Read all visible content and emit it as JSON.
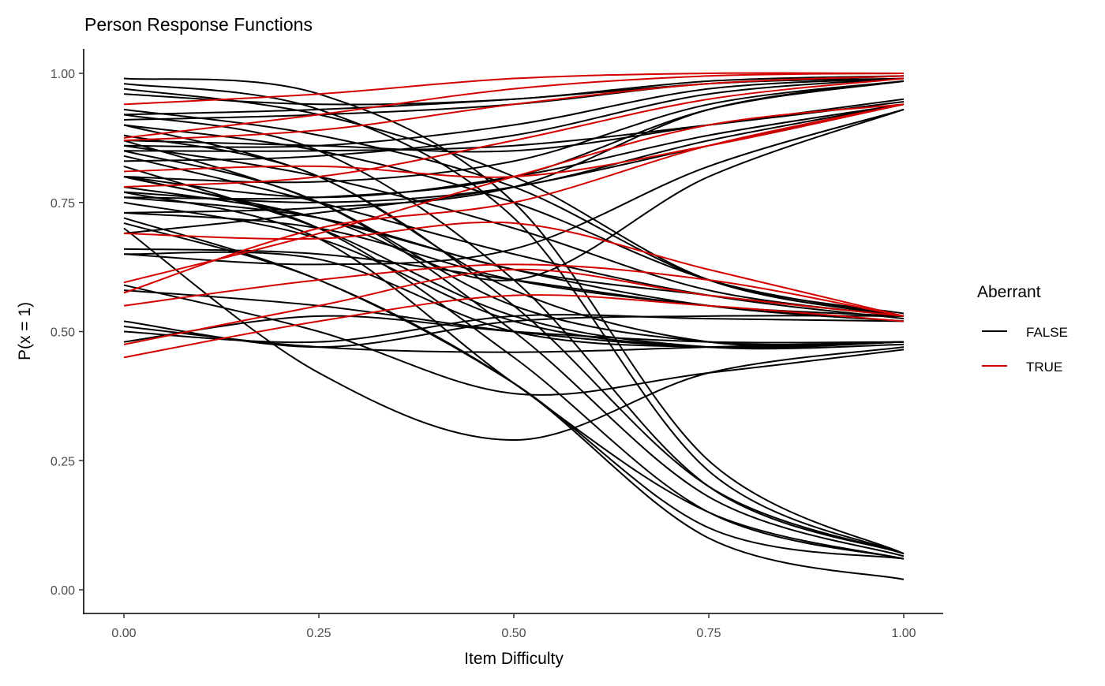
{
  "chart_data": {
    "type": "line",
    "title": "Person Response Functions",
    "xlabel": "Item Difficulty",
    "ylabel": "P(x = 1)",
    "xlim": [
      0,
      1
    ],
    "ylim": [
      0,
      1
    ],
    "x_ticks": [
      "0.00",
      "0.25",
      "0.50",
      "0.75",
      "1.00"
    ],
    "y_ticks": [
      "0.00",
      "0.25",
      "0.50",
      "0.75",
      "1.00"
    ],
    "grid": false,
    "legend": {
      "title": "Aberrant",
      "placement": "right",
      "entries": [
        {
          "label": "FALSE",
          "color": "#000000"
        },
        {
          "label": "TRUE",
          "color": "#D40000"
        }
      ]
    },
    "x": [
      0,
      0.25,
      0.5,
      0.75,
      1
    ],
    "series": [
      {
        "aberrant": false,
        "values": [
          0.99,
          0.96,
          0.75,
          0.25,
          0.07
        ]
      },
      {
        "aberrant": false,
        "values": [
          0.98,
          0.93,
          0.72,
          0.23,
          0.07
        ]
      },
      {
        "aberrant": false,
        "values": [
          0.92,
          0.85,
          0.6,
          0.2,
          0.07
        ]
      },
      {
        "aberrant": false,
        "values": [
          0.88,
          0.8,
          0.55,
          0.2,
          0.07
        ]
      },
      {
        "aberrant": false,
        "values": [
          0.85,
          0.75,
          0.5,
          0.18,
          0.065
        ]
      },
      {
        "aberrant": false,
        "values": [
          0.8,
          0.7,
          0.45,
          0.15,
          0.06
        ]
      },
      {
        "aberrant": false,
        "values": [
          0.77,
          0.68,
          0.4,
          0.15,
          0.06
        ]
      },
      {
        "aberrant": false,
        "values": [
          0.72,
          0.6,
          0.4,
          0.12,
          0.06
        ]
      },
      {
        "aberrant": false,
        "values": [
          0.71,
          0.6,
          0.4,
          0.1,
          0.02
        ]
      },
      {
        "aberrant": false,
        "values": [
          0.7,
          0.42,
          0.29,
          0.42,
          0.47
        ]
      },
      {
        "aberrant": false,
        "values": [
          0.59,
          0.5,
          0.38,
          0.42,
          0.465
        ]
      },
      {
        "aberrant": false,
        "values": [
          0.97,
          0.92,
          0.8,
          0.6,
          0.53
        ]
      },
      {
        "aberrant": false,
        "values": [
          0.93,
          0.88,
          0.78,
          0.6,
          0.535
        ]
      },
      {
        "aberrant": false,
        "values": [
          0.9,
          0.85,
          0.75,
          0.6,
          0.53
        ]
      },
      {
        "aberrant": false,
        "values": [
          0.86,
          0.8,
          0.7,
          0.58,
          0.53
        ]
      },
      {
        "aberrant": false,
        "values": [
          0.84,
          0.75,
          0.65,
          0.57,
          0.525
        ]
      },
      {
        "aberrant": false,
        "values": [
          0.8,
          0.72,
          0.62,
          0.55,
          0.52
        ]
      },
      {
        "aberrant": false,
        "values": [
          0.76,
          0.72,
          0.62,
          0.57,
          0.53
        ]
      },
      {
        "aberrant": false,
        "values": [
          0.73,
          0.7,
          0.6,
          0.55,
          0.52
        ]
      },
      {
        "aberrant": false,
        "values": [
          0.66,
          0.65,
          0.6,
          0.55,
          0.53
        ]
      },
      {
        "aberrant": false,
        "values": [
          0.52,
          0.47,
          0.52,
          0.53,
          0.53
        ]
      },
      {
        "aberrant": false,
        "values": [
          0.5,
          0.48,
          0.53,
          0.525,
          0.52
        ]
      },
      {
        "aberrant": false,
        "values": [
          0.9,
          0.8,
          0.58,
          0.48,
          0.48
        ]
      },
      {
        "aberrant": false,
        "values": [
          0.87,
          0.75,
          0.55,
          0.48,
          0.48
        ]
      },
      {
        "aberrant": false,
        "values": [
          0.82,
          0.7,
          0.53,
          0.47,
          0.475
        ]
      },
      {
        "aberrant": false,
        "values": [
          0.75,
          0.68,
          0.52,
          0.47,
          0.48
        ]
      },
      {
        "aberrant": false,
        "values": [
          0.65,
          0.64,
          0.5,
          0.47,
          0.48
        ]
      },
      {
        "aberrant": false,
        "values": [
          0.58,
          0.55,
          0.5,
          0.47,
          0.48
        ]
      },
      {
        "aberrant": false,
        "values": [
          0.51,
          0.47,
          0.46,
          0.47,
          0.48
        ]
      },
      {
        "aberrant": false,
        "values": [
          0.48,
          0.53,
          0.5,
          0.48,
          0.48
        ]
      },
      {
        "aberrant": false,
        "values": [
          0.87,
          0.86,
          0.85,
          0.9,
          0.95
        ]
      },
      {
        "aberrant": false,
        "values": [
          0.85,
          0.85,
          0.86,
          0.9,
          0.945
        ]
      },
      {
        "aberrant": false,
        "values": [
          0.8,
          0.76,
          0.8,
          0.88,
          0.94
        ]
      },
      {
        "aberrant": false,
        "values": [
          0.77,
          0.75,
          0.78,
          0.87,
          0.94
        ]
      },
      {
        "aberrant": false,
        "values": [
          0.69,
          0.73,
          0.78,
          0.86,
          0.94
        ]
      },
      {
        "aberrant": false,
        "values": [
          0.65,
          0.63,
          0.66,
          0.82,
          0.93
        ]
      },
      {
        "aberrant": false,
        "values": [
          0.78,
          0.72,
          0.6,
          0.8,
          0.93
        ]
      },
      {
        "aberrant": false,
        "values": [
          0.91,
          0.92,
          0.94,
          0.98,
          0.99
        ]
      },
      {
        "aberrant": false,
        "values": [
          0.92,
          0.93,
          0.95,
          0.98,
          0.995
        ]
      },
      {
        "aberrant": false,
        "values": [
          0.86,
          0.86,
          0.9,
          0.97,
          0.99
        ]
      },
      {
        "aberrant": false,
        "values": [
          0.83,
          0.84,
          0.88,
          0.96,
          0.99
        ]
      },
      {
        "aberrant": false,
        "values": [
          0.8,
          0.79,
          0.83,
          0.94,
          0.985
        ]
      },
      {
        "aberrant": false,
        "values": [
          0.76,
          0.76,
          0.8,
          0.93,
          0.985
        ]
      },
      {
        "aberrant": false,
        "values": [
          0.73,
          0.74,
          0.78,
          0.93,
          0.985
        ]
      },
      {
        "aberrant": false,
        "values": [
          0.96,
          0.94,
          0.95,
          0.985,
          0.995
        ]
      },
      {
        "aberrant": true,
        "values": [
          0.94,
          0.96,
          0.99,
          1.0,
          1.0
        ]
      },
      {
        "aberrant": true,
        "values": [
          0.875,
          0.92,
          0.97,
          0.995,
          1.0
        ]
      },
      {
        "aberrant": true,
        "values": [
          0.87,
          0.89,
          0.94,
          0.98,
          0.995
        ]
      },
      {
        "aberrant": true,
        "values": [
          0.81,
          0.82,
          0.8,
          0.86,
          0.94
        ]
      },
      {
        "aberrant": true,
        "values": [
          0.78,
          0.8,
          0.87,
          0.95,
          0.99
        ]
      },
      {
        "aberrant": true,
        "values": [
          0.69,
          0.68,
          0.71,
          0.62,
          0.53
        ]
      },
      {
        "aberrant": true,
        "values": [
          0.595,
          0.69,
          0.8,
          0.9,
          0.94
        ]
      },
      {
        "aberrant": true,
        "values": [
          0.575,
          0.7,
          0.75,
          0.86,
          0.94
        ]
      },
      {
        "aberrant": true,
        "values": [
          0.55,
          0.6,
          0.63,
          0.6,
          0.53
        ]
      },
      {
        "aberrant": true,
        "values": [
          0.475,
          0.55,
          0.62,
          0.57,
          0.53
        ]
      },
      {
        "aberrant": true,
        "values": [
          0.45,
          0.52,
          0.57,
          0.55,
          0.52
        ]
      }
    ]
  }
}
